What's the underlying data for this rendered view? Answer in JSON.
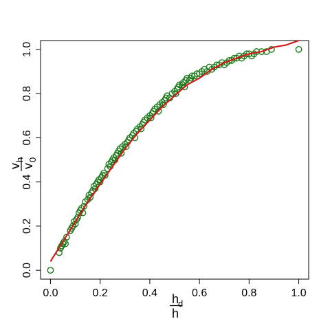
{
  "chart_data": {
    "type": "scatter",
    "xlim": [
      -0.04,
      1.04
    ],
    "ylim": [
      -0.04,
      1.04
    ],
    "x_ticks": [
      "0.0",
      "0.2",
      "0.4",
      "0.6",
      "0.8",
      "1.0"
    ],
    "y_ticks": [
      "0.0",
      "0.2",
      "0.4",
      "0.6",
      "0.8",
      "1.0"
    ],
    "xlabel": {
      "numerator": "h",
      "numerator_sub": "d",
      "denominator": "h"
    },
    "ylabel": {
      "numerator": "v",
      "numerator_sub": "h",
      "denominator": "v",
      "denominator_sub": "0"
    },
    "grid": false,
    "series": [
      {
        "kind": "points",
        "marker": "open-circle",
        "color": "#1a7a1a",
        "points": [
          [
            0.0,
            0.0
          ],
          [
            0.035,
            0.08
          ],
          [
            0.04,
            0.1
          ],
          [
            0.045,
            0.11
          ],
          [
            0.05,
            0.12
          ],
          [
            0.055,
            0.13
          ],
          [
            0.06,
            0.12
          ],
          [
            0.065,
            0.15
          ],
          [
            0.08,
            0.18
          ],
          [
            0.085,
            0.19
          ],
          [
            0.09,
            0.2
          ],
          [
            0.095,
            0.22
          ],
          [
            0.1,
            0.21
          ],
          [
            0.105,
            0.23
          ],
          [
            0.11,
            0.24
          ],
          [
            0.115,
            0.26
          ],
          [
            0.12,
            0.27
          ],
          [
            0.125,
            0.28
          ],
          [
            0.13,
            0.26
          ],
          [
            0.135,
            0.29
          ],
          [
            0.14,
            0.31
          ],
          [
            0.15,
            0.32
          ],
          [
            0.155,
            0.34
          ],
          [
            0.16,
            0.33
          ],
          [
            0.165,
            0.35
          ],
          [
            0.17,
            0.36
          ],
          [
            0.175,
            0.38
          ],
          [
            0.18,
            0.37
          ],
          [
            0.185,
            0.39
          ],
          [
            0.19,
            0.4
          ],
          [
            0.195,
            0.41
          ],
          [
            0.2,
            0.4
          ],
          [
            0.205,
            0.42
          ],
          [
            0.21,
            0.43
          ],
          [
            0.215,
            0.44
          ],
          [
            0.22,
            0.43
          ],
          [
            0.23,
            0.46
          ],
          [
            0.235,
            0.48
          ],
          [
            0.24,
            0.47
          ],
          [
            0.245,
            0.49
          ],
          [
            0.25,
            0.5
          ],
          [
            0.255,
            0.51
          ],
          [
            0.26,
            0.5
          ],
          [
            0.265,
            0.52
          ],
          [
            0.27,
            0.53
          ],
          [
            0.275,
            0.54
          ],
          [
            0.28,
            0.55
          ],
          [
            0.285,
            0.53
          ],
          [
            0.29,
            0.56
          ],
          [
            0.3,
            0.57
          ],
          [
            0.305,
            0.56
          ],
          [
            0.31,
            0.58
          ],
          [
            0.315,
            0.59
          ],
          [
            0.32,
            0.6
          ],
          [
            0.33,
            0.61
          ],
          [
            0.335,
            0.62
          ],
          [
            0.34,
            0.6
          ],
          [
            0.345,
            0.63
          ],
          [
            0.35,
            0.64
          ],
          [
            0.36,
            0.65
          ],
          [
            0.365,
            0.64
          ],
          [
            0.37,
            0.66
          ],
          [
            0.375,
            0.67
          ],
          [
            0.38,
            0.68
          ],
          [
            0.39,
            0.69
          ],
          [
            0.4,
            0.7
          ],
          [
            0.405,
            0.69
          ],
          [
            0.41,
            0.71
          ],
          [
            0.415,
            0.72
          ],
          [
            0.42,
            0.73
          ],
          [
            0.43,
            0.74
          ],
          [
            0.435,
            0.72
          ],
          [
            0.44,
            0.75
          ],
          [
            0.45,
            0.76
          ],
          [
            0.455,
            0.75
          ],
          [
            0.46,
            0.77
          ],
          [
            0.465,
            0.78
          ],
          [
            0.47,
            0.79
          ],
          [
            0.48,
            0.78
          ],
          [
            0.49,
            0.8
          ],
          [
            0.5,
            0.81
          ],
          [
            0.505,
            0.8
          ],
          [
            0.51,
            0.82
          ],
          [
            0.515,
            0.83
          ],
          [
            0.52,
            0.84
          ],
          [
            0.53,
            0.84
          ],
          [
            0.535,
            0.85
          ],
          [
            0.54,
            0.83
          ],
          [
            0.545,
            0.86
          ],
          [
            0.55,
            0.87
          ],
          [
            0.56,
            0.86
          ],
          [
            0.565,
            0.87
          ],
          [
            0.57,
            0.88
          ],
          [
            0.58,
            0.88
          ],
          [
            0.59,
            0.89
          ],
          [
            0.6,
            0.89
          ],
          [
            0.61,
            0.9
          ],
          [
            0.62,
            0.91
          ],
          [
            0.63,
            0.9
          ],
          [
            0.64,
            0.92
          ],
          [
            0.65,
            0.91
          ],
          [
            0.66,
            0.92
          ],
          [
            0.67,
            0.93
          ],
          [
            0.68,
            0.93
          ],
          [
            0.69,
            0.94
          ],
          [
            0.7,
            0.93
          ],
          [
            0.71,
            0.94
          ],
          [
            0.72,
            0.95
          ],
          [
            0.73,
            0.95
          ],
          [
            0.74,
            0.96
          ],
          [
            0.75,
            0.96
          ],
          [
            0.76,
            0.97
          ],
          [
            0.77,
            0.96
          ],
          [
            0.78,
            0.97
          ],
          [
            0.79,
            0.98
          ],
          [
            0.8,
            0.98
          ],
          [
            0.81,
            0.97
          ],
          [
            0.82,
            0.98
          ],
          [
            0.83,
            0.99
          ],
          [
            0.85,
            0.99
          ],
          [
            0.87,
            0.99
          ],
          [
            0.89,
            1.0
          ],
          [
            1.0,
            1.0
          ]
        ]
      },
      {
        "kind": "line",
        "color": "#d11a1a",
        "points": [
          [
            0.0,
            0.04
          ],
          [
            0.05,
            0.13
          ],
          [
            0.1,
            0.22
          ],
          [
            0.15,
            0.31
          ],
          [
            0.2,
            0.39
          ],
          [
            0.25,
            0.47
          ],
          [
            0.3,
            0.55
          ],
          [
            0.35,
            0.62
          ],
          [
            0.4,
            0.68
          ],
          [
            0.45,
            0.74
          ],
          [
            0.5,
            0.79
          ],
          [
            0.55,
            0.84
          ],
          [
            0.6,
            0.87
          ],
          [
            0.65,
            0.91
          ],
          [
            0.7,
            0.94
          ],
          [
            0.75,
            0.96
          ],
          [
            0.8,
            0.98
          ],
          [
            0.85,
            0.99
          ],
          [
            0.9,
            1.01
          ],
          [
            0.95,
            1.02
          ],
          [
            1.0,
            1.04
          ]
        ]
      }
    ]
  }
}
